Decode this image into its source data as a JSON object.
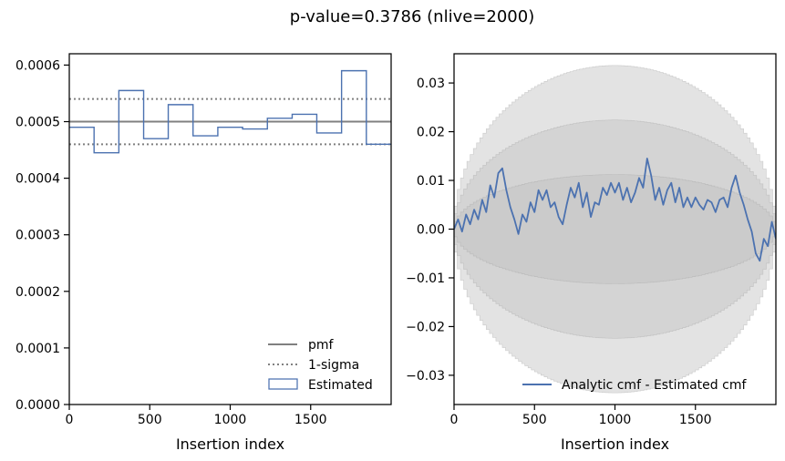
{
  "figure_title": "p-value=0.3786 (nlive=2000)",
  "colors": {
    "estimated": "#4c72b0",
    "pmf": "#808080",
    "sigma_band": "#c0c0c0"
  },
  "chart_data": [
    {
      "type": "step",
      "xlabel": "Insertion index",
      "ylabel": "",
      "xlim": [
        0,
        2000
      ],
      "ylim": [
        0,
        0.00062
      ],
      "xticks": [
        0,
        500,
        1000,
        1500
      ],
      "xtick_labels": [
        "0",
        "500",
        "1000",
        "1500"
      ],
      "yticks": [
        0,
        0.0001,
        0.0002,
        0.0003,
        0.0004,
        0.0005,
        0.0006
      ],
      "ytick_labels": [
        "0.0000",
        "0.0001",
        "0.0002",
        "0.0003",
        "0.0004",
        "0.0005",
        "0.0006"
      ],
      "pmf": 0.0005,
      "one_sigma": [
        0.00046,
        0.00054
      ],
      "bin_edges": [
        0,
        154,
        308,
        462,
        615,
        769,
        923,
        1077,
        1231,
        1385,
        1538,
        1692,
        1846,
        2000
      ],
      "estimated": [
        0.00049,
        0.000445,
        0.000555,
        0.00047,
        0.00053,
        0.000475,
        0.00049,
        0.000487,
        0.000506,
        0.000513,
        0.00048,
        0.00059,
        0.00046
      ],
      "legend": {
        "position": "lower right",
        "entries": [
          "pmf",
          "1-sigma",
          "Estimated"
        ]
      }
    },
    {
      "type": "line",
      "xlabel": "Insertion index",
      "ylabel": "",
      "xlim": [
        0,
        2000
      ],
      "ylim": [
        -0.036,
        0.036
      ],
      "xticks": [
        0,
        500,
        1000,
        1500
      ],
      "xtick_labels": [
        "0",
        "500",
        "1000",
        "1500"
      ],
      "yticks": [
        -0.03,
        -0.02,
        -0.01,
        0,
        0.01,
        0.02,
        0.03
      ],
      "ytick_labels": [
        "−0.03",
        "−0.02",
        "−0.01",
        "0.00",
        "0.01",
        "0.02",
        "0.03"
      ],
      "bands_peak": [
        0.0112,
        0.0224,
        0.0336
      ],
      "series": [
        {
          "name": "Analytic cmf - Estimated cmf",
          "x": [
            0,
            25,
            50,
            75,
            100,
            125,
            150,
            175,
            200,
            225,
            250,
            275,
            300,
            325,
            350,
            375,
            400,
            425,
            450,
            475,
            500,
            525,
            550,
            575,
            600,
            625,
            650,
            675,
            700,
            725,
            750,
            775,
            800,
            825,
            850,
            875,
            900,
            925,
            950,
            975,
            1000,
            1025,
            1050,
            1075,
            1100,
            1125,
            1150,
            1175,
            1200,
            1225,
            1250,
            1275,
            1300,
            1325,
            1350,
            1375,
            1400,
            1425,
            1450,
            1475,
            1500,
            1525,
            1550,
            1575,
            1600,
            1625,
            1650,
            1675,
            1700,
            1725,
            1750,
            1775,
            1800,
            1825,
            1850,
            1875,
            1900,
            1925,
            1950,
            1975,
            2000
          ],
          "values": [
            0.0,
            0.002,
            -0.0005,
            0.003,
            0.001,
            0.004,
            0.002,
            0.006,
            0.0035,
            0.009,
            0.0065,
            0.0115,
            0.0125,
            0.008,
            0.0045,
            0.002,
            -0.001,
            0.003,
            0.0015,
            0.0055,
            0.0035,
            0.008,
            0.006,
            0.008,
            0.0045,
            0.0055,
            0.0025,
            0.001,
            0.005,
            0.0085,
            0.0065,
            0.0095,
            0.0045,
            0.0075,
            0.0025,
            0.0055,
            0.005,
            0.0085,
            0.007,
            0.0095,
            0.0075,
            0.0095,
            0.006,
            0.0085,
            0.0055,
            0.0075,
            0.0105,
            0.0085,
            0.0145,
            0.011,
            0.006,
            0.0085,
            0.005,
            0.008,
            0.0095,
            0.0055,
            0.0085,
            0.0045,
            0.0065,
            0.0045,
            0.0065,
            0.005,
            0.004,
            0.006,
            0.0055,
            0.0035,
            0.006,
            0.0065,
            0.0045,
            0.0085,
            0.011,
            0.0075,
            0.005,
            0.002,
            -0.0005,
            -0.005,
            -0.0065,
            -0.002,
            -0.0035,
            0.0015,
            -0.002
          ]
        }
      ],
      "legend": {
        "position": "lower right",
        "entries": [
          "Analytic cmf - Estimated cmf"
        ]
      }
    }
  ]
}
